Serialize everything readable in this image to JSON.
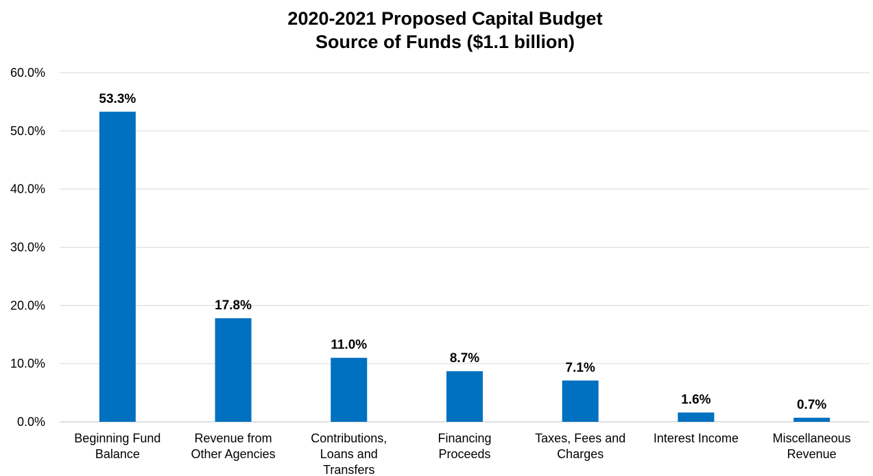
{
  "chart_data": {
    "type": "bar",
    "title": [
      "2020-2021 Proposed Capital Budget",
      "Source of Funds ($1.1 billion)"
    ],
    "xlabel": "",
    "ylabel": "",
    "ylim": [
      0,
      60
    ],
    "yticks": [
      0,
      10,
      20,
      30,
      40,
      50,
      60
    ],
    "ytick_labels": [
      "0.0%",
      "10.0%",
      "20.0%",
      "30.0%",
      "40.0%",
      "50.0%",
      "60.0%"
    ],
    "grid": true,
    "legend": "none",
    "bar_color": "#0070c0",
    "categories": [
      [
        "Beginning Fund",
        "Balance"
      ],
      [
        "Revenue from",
        "Other Agencies"
      ],
      [
        "Contributions,",
        "Loans and",
        "Transfers"
      ],
      [
        "Financing",
        "Proceeds"
      ],
      [
        "Taxes, Fees and",
        "Charges"
      ],
      [
        "Interest Income"
      ],
      [
        "Miscellaneous",
        "Revenue"
      ]
    ],
    "values": [
      53.3,
      17.8,
      11.0,
      8.7,
      7.1,
      1.6,
      0.7
    ],
    "data_labels": [
      "53.3%",
      "17.8%",
      "11.0%",
      "8.7%",
      "7.1%",
      "1.6%",
      "0.7%"
    ]
  }
}
